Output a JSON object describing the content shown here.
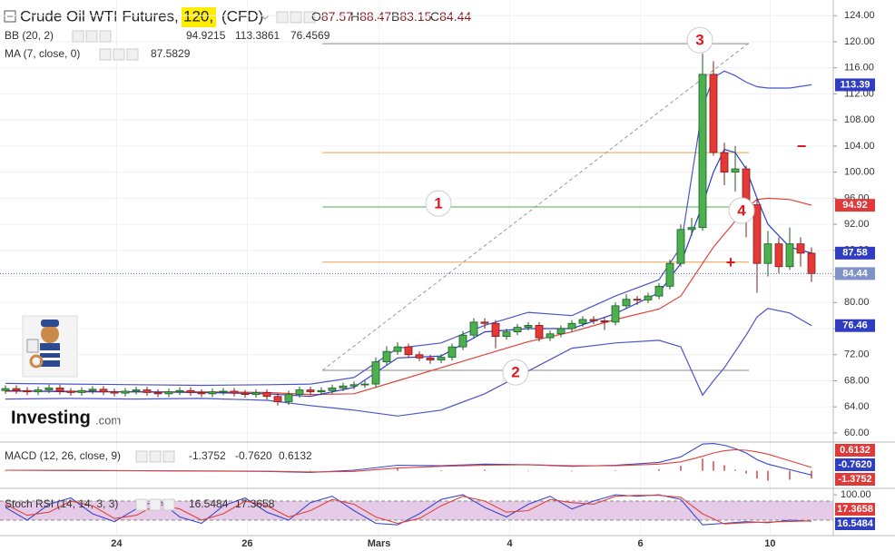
{
  "header": {
    "symbol": "Crude Oil WTI Futures,",
    "interval": "120,",
    "source": "(CFD)",
    "ohlc": [
      {
        "label": "O",
        "value": 87.57
      },
      {
        "label": "H",
        "value": 88.47
      },
      {
        "label": "B",
        "value": 83.15
      },
      {
        "label": "C",
        "value": 84.44
      }
    ]
  },
  "branding": {
    "name": "Investing",
    "suffix": ".com"
  },
  "chart_data": [
    {
      "type": "candlestick",
      "up_color": "#4caf50",
      "down_color": "#e53935",
      "grid": true,
      "xlim": [
        -0.5,
        76
      ],
      "ylim": [
        58.6,
        126.4
      ],
      "xticks": [
        {
          "value": 10.2,
          "label": "24"
        },
        {
          "value": 22.2,
          "label": "26"
        },
        {
          "value": 34.3,
          "label": "Mars"
        },
        {
          "value": 46.3,
          "label": "4"
        },
        {
          "value": 58.3,
          "label": "6"
        },
        {
          "value": 70.2,
          "label": "10"
        }
      ],
      "yticks": [
        {
          "value": 124,
          "label": "124.00"
        },
        {
          "value": 120,
          "label": "120.00"
        },
        {
          "value": 116,
          "label": "116.00"
        },
        {
          "value": 112,
          "label": "112.00"
        },
        {
          "value": 108,
          "label": "108.00"
        },
        {
          "value": 104,
          "label": "104.00"
        },
        {
          "value": 100,
          "label": "100.00"
        },
        {
          "value": 96,
          "label": "96.00"
        },
        {
          "value": 92,
          "label": "92.00"
        },
        {
          "value": 88,
          "label": "88.00"
        },
        {
          "value": 84,
          "label": "84.00"
        },
        {
          "value": 80,
          "label": "80.00"
        },
        {
          "value": 76,
          "label": "76.00"
        },
        {
          "value": 72,
          "label": "72.00"
        },
        {
          "value": 68,
          "label": "68.00"
        },
        {
          "value": 64,
          "label": "64.00"
        },
        {
          "value": 60,
          "label": "60.00"
        }
      ],
      "open": [
        66.5,
        66.8,
        66.5,
        66.3,
        66.6,
        66.9,
        66.4,
        66.2,
        66.5,
        66.7,
        66.3,
        66.1,
        66.4,
        66.6,
        66.2,
        66.0,
        66.3,
        66.5,
        66.2,
        66.0,
        66.3,
        66.4,
        66.1,
        65.9,
        66.2,
        65.6,
        64.8,
        65.9,
        66.6,
        66.3,
        66.5,
        66.9,
        67.2,
        67.4,
        67.5,
        70.9,
        72.5,
        73.2,
        72.0,
        71.5,
        71.2,
        71.6,
        73.2,
        75.0,
        77.0,
        76.8,
        74.8,
        75.5,
        76.2,
        76.5,
        74.6,
        75.2,
        76.0,
        76.8,
        77.4,
        77.2,
        77.0,
        79.5,
        80.5,
        80.4,
        81.0,
        82.5,
        86.0,
        91.2,
        91.5,
        115.0,
        103.0,
        100.0,
        100.5,
        95.0,
        86.0,
        89.0,
        85.5,
        89.0,
        87.57
      ],
      "high": [
        67.3,
        67.3,
        67.0,
        67.1,
        67.4,
        67.4,
        66.9,
        67.0,
        67.2,
        67.2,
        66.8,
        66.9,
        67.1,
        67.1,
        66.7,
        66.8,
        67.0,
        67.0,
        66.7,
        66.8,
        66.9,
        66.9,
        66.6,
        66.7,
        66.7,
        66.1,
        66.5,
        67.1,
        67.1,
        67.0,
        67.4,
        67.7,
        67.9,
        68.0,
        71.6,
        73.3,
        73.9,
        73.7,
        72.5,
        72.0,
        72.1,
        73.7,
        75.6,
        77.6,
        77.6,
        77.3,
        76.0,
        76.7,
        77.0,
        77.0,
        75.7,
        76.5,
        77.3,
        77.9,
        77.9,
        77.7,
        80.0,
        81.3,
        81.0,
        81.5,
        83.0,
        86.6,
        92.0,
        93.0,
        118.2,
        117.0,
        104.5,
        104.0,
        101.0,
        96.0,
        91.0,
        90.0,
        91.5,
        90.0,
        88.47
      ],
      "low": [
        66.0,
        66.0,
        65.8,
        65.8,
        66.1,
        65.9,
        65.7,
        65.7,
        66.0,
        65.8,
        65.6,
        65.6,
        65.9,
        65.7,
        65.5,
        65.5,
        65.8,
        65.7,
        65.5,
        65.5,
        65.8,
        65.6,
        65.4,
        65.4,
        65.1,
        64.2,
        64.3,
        65.4,
        65.8,
        65.8,
        66.0,
        66.4,
        66.7,
        66.9,
        67.0,
        70.4,
        72.0,
        71.5,
        71.0,
        70.6,
        70.7,
        71.1,
        72.7,
        74.5,
        76.0,
        73.0,
        74.3,
        75.0,
        75.7,
        74.0,
        74.1,
        74.7,
        75.5,
        76.3,
        76.7,
        75.8,
        76.5,
        79.0,
        79.6,
        79.9,
        80.5,
        82.0,
        85.5,
        90.2,
        91.0,
        102.5,
        98.0,
        97.0,
        90.0,
        81.5,
        84.0,
        84.5,
        85.0,
        85.5,
        83.15
      ],
      "close": [
        66.8,
        66.5,
        66.3,
        66.6,
        66.9,
        66.4,
        66.2,
        66.5,
        66.7,
        66.3,
        66.1,
        66.4,
        66.6,
        66.2,
        66.0,
        66.3,
        66.5,
        66.2,
        66.0,
        66.3,
        66.4,
        66.1,
        65.9,
        66.2,
        65.6,
        64.8,
        65.9,
        66.6,
        66.3,
        66.5,
        66.9,
        67.2,
        67.4,
        67.5,
        70.9,
        72.5,
        73.2,
        72.0,
        71.5,
        71.2,
        71.6,
        73.2,
        75.0,
        77.0,
        76.8,
        74.8,
        75.5,
        76.2,
        76.5,
        74.6,
        75.2,
        76.0,
        76.8,
        77.4,
        77.2,
        77.0,
        79.5,
        80.5,
        80.4,
        81.0,
        82.5,
        86.0,
        91.2,
        91.5,
        115.0,
        103.0,
        100.0,
        100.5,
        95.0,
        86.0,
        89.0,
        85.5,
        89.0,
        87.57,
        84.44
      ],
      "indicators": [
        {
          "name": "BB (20, 2)",
          "legend_values": [
            94.9215,
            113.3861,
            76.4569
          ],
          "legend_colors": [
            "#e53935",
            "#2f3ec0",
            "#2f3ec0"
          ],
          "x": [
            0,
            6,
            12,
            18,
            24,
            28,
            32,
            36,
            40,
            44,
            48,
            52,
            56,
            60,
            62,
            64,
            65,
            66,
            67,
            68,
            69,
            70,
            72,
            74
          ],
          "lines": [
            {
              "color": "#e0433a",
              "values": [
                66.4,
                66.4,
                66.3,
                66.3,
                66.2,
                65.9,
                66.0,
                68.0,
                70.0,
                72.0,
                74.0,
                75.5,
                77.4,
                79.0,
                81.0,
                86.0,
                88.5,
                90.5,
                92.5,
                94.5,
                95.8,
                96.0,
                95.8,
                94.92
              ]
            },
            {
              "color": "#4a55c8",
              "values": [
                67.6,
                67.5,
                67.4,
                67.3,
                67.4,
                67.5,
                68.5,
                73.0,
                73.8,
                76.5,
                78.5,
                78.0,
                81.0,
                83.5,
                88.5,
                110.0,
                114.5,
                115.5,
                114.8,
                113.8,
                113.1,
                112.9,
                112.9,
                113.39
              ]
            },
            {
              "color": "#4a55c8",
              "values": [
                65.2,
                65.3,
                65.2,
                65.3,
                65.0,
                64.2,
                63.5,
                62.6,
                63.5,
                66.0,
                69.5,
                73.0,
                73.8,
                74.2,
                73.2,
                65.8,
                68.0,
                70.0,
                72.5,
                75.0,
                77.8,
                79.1,
                78.4,
                76.46
              ]
            }
          ]
        },
        {
          "name": "MA (7, close, 0)",
          "legend_values": [
            87.5829
          ],
          "legend_colors": [
            "#2f3ec0"
          ],
          "x": [
            0,
            6,
            12,
            18,
            24,
            28,
            32,
            36,
            40,
            44,
            48,
            52,
            56,
            60,
            62,
            64,
            65,
            66,
            67,
            68,
            69,
            70,
            72,
            74
          ],
          "lines": [
            {
              "color": "#2a3ad0",
              "values": [
                66.5,
                66.3,
                66.3,
                66.2,
                66.0,
                65.6,
                67.0,
                71.5,
                71.8,
                75.5,
                76.0,
                76.0,
                78.3,
                81.5,
                86.0,
                95.0,
                100.0,
                103.5,
                103.0,
                100.5,
                96.0,
                92.0,
                88.5,
                87.58
              ]
            }
          ]
        }
      ],
      "levels": [
        {
          "value": 119.7,
          "color": "#888888"
        },
        {
          "value": 103.0,
          "color": "#f0a040"
        },
        {
          "value": 94.65,
          "color": "#4caf50"
        },
        {
          "value": 86.2,
          "color": "#f0a040"
        },
        {
          "value": 69.6,
          "color": "#888888"
        }
      ],
      "level_x": [
        29.1,
        68.25
      ],
      "trendline": [
        [
          29.1,
          69.6
        ],
        [
          68.25,
          119.8
        ]
      ],
      "markers": [
        {
          "text": "1",
          "x": 39.75,
          "y": 95.2
        },
        {
          "text": "2",
          "x": 46.83,
          "y": 69.3
        },
        {
          "text": "3",
          "x": 63.75,
          "y": 120.24
        },
        {
          "text": "4",
          "x": 67.58,
          "y": 94.1
        }
      ],
      "signs": [
        {
          "text": "+",
          "x": 66.58,
          "y": 86.0
        },
        {
          "text": "−",
          "x": 73.08,
          "y": 103.8
        }
      ]
    },
    {
      "type": "macd",
      "name": "MACD (12, 26, close, 9)",
      "ylim": [
        -3.16,
        5
      ],
      "legend_values": [
        -1.3752,
        {
          "value": -0.762,
          "label": "-0.7620"
        },
        0.6132
      ],
      "legend_colors": [
        "#e53935",
        "#2f3ec0",
        "#e53935"
      ],
      "x": [
        0,
        6,
        12,
        18,
        24,
        28,
        32,
        36,
        40,
        44,
        48,
        52,
        56,
        60,
        62,
        64,
        65,
        66,
        67,
        68,
        69,
        70,
        72,
        74
      ],
      "macd": {
        "color": "#3b46c9",
        "values": [
          0.1,
          0.05,
          0.0,
          -0.05,
          -0.1,
          -0.3,
          0.1,
          1.0,
          0.9,
          1.2,
          1.1,
          0.8,
          1.0,
          1.5,
          2.5,
          4.8,
          4.9,
          4.6,
          4.0,
          3.2,
          2.0,
          1.2,
          0.2,
          -0.762
        ]
      },
      "signal": {
        "color": "#e0433a",
        "values": [
          0.1,
          0.07,
          0.02,
          -0.02,
          -0.06,
          -0.2,
          -0.1,
          0.5,
          0.8,
          1.0,
          1.1,
          0.9,
          0.9,
          1.2,
          1.6,
          2.6,
          3.2,
          3.6,
          3.8,
          3.7,
          3.4,
          3.0,
          1.8,
          0.6132
        ]
      },
      "histogram": {
        "color": "#e57373",
        "values": [
          0,
          -0.02,
          -0.02,
          -0.03,
          -0.04,
          -0.1,
          0.2,
          0.5,
          0.1,
          0.2,
          0,
          -0.1,
          0.1,
          0.3,
          0.9,
          2.2,
          1.7,
          1.0,
          0.2,
          -0.5,
          -1.4,
          -1.8,
          -1.6,
          -1.3752
        ]
      }
    },
    {
      "type": "stochastic",
      "name": "Stoch RSI (14, 14, 3, 3)",
      "ylim": [
        -28.6,
        117.1
      ],
      "yticks": [
        {
          "value": 100,
          "label": "100.00"
        }
      ],
      "band": [
        20,
        80
      ],
      "band_color": "#e6cbe8",
      "legend_values": [
        16.5484,
        17.3658
      ],
      "legend_colors": [
        "#2f3ec0",
        "#e53935"
      ],
      "x": [
        0,
        2,
        4,
        6,
        8,
        10,
        12,
        14,
        16,
        18,
        20,
        22,
        24,
        26,
        28,
        30,
        32,
        34,
        36,
        38,
        40,
        42,
        44,
        46,
        48,
        50,
        52,
        54,
        56,
        58,
        60,
        62,
        64,
        66,
        68,
        70,
        72,
        74
      ],
      "k": {
        "color": "#3b46c9",
        "values": [
          60,
          20,
          70,
          90,
          40,
          15,
          55,
          85,
          30,
          10,
          65,
          90,
          45,
          20,
          75,
          95,
          50,
          10,
          5,
          40,
          85,
          100,
          60,
          30,
          70,
          95,
          55,
          80,
          100,
          95,
          100,
          85,
          5,
          10,
          15,
          12,
          20,
          16.5484
        ]
      },
      "d": {
        "color": "#e0433a",
        "values": [
          70,
          35,
          45,
          80,
          65,
          25,
          35,
          70,
          55,
          20,
          40,
          80,
          65,
          30,
          50,
          85,
          70,
          30,
          10,
          25,
          65,
          95,
          80,
          45,
          50,
          85,
          75,
          70,
          95,
          98,
          98,
          92,
          40,
          8,
          12,
          14,
          16,
          17.3658
        ]
      }
    }
  ]
}
